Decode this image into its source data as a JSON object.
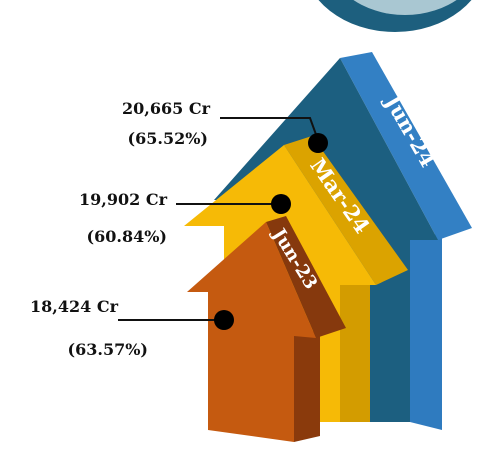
{
  "items": [
    {
      "period": "Jun-24",
      "amount": "20,665 Cr",
      "share": "(65.52%)"
    },
    {
      "period": "Mar-24",
      "amount": "19,902 Cr",
      "share": "(60.84%)"
    },
    {
      "period": "Jun-23",
      "amount": "18,424 Cr",
      "share": "(63.57%)"
    }
  ]
}
